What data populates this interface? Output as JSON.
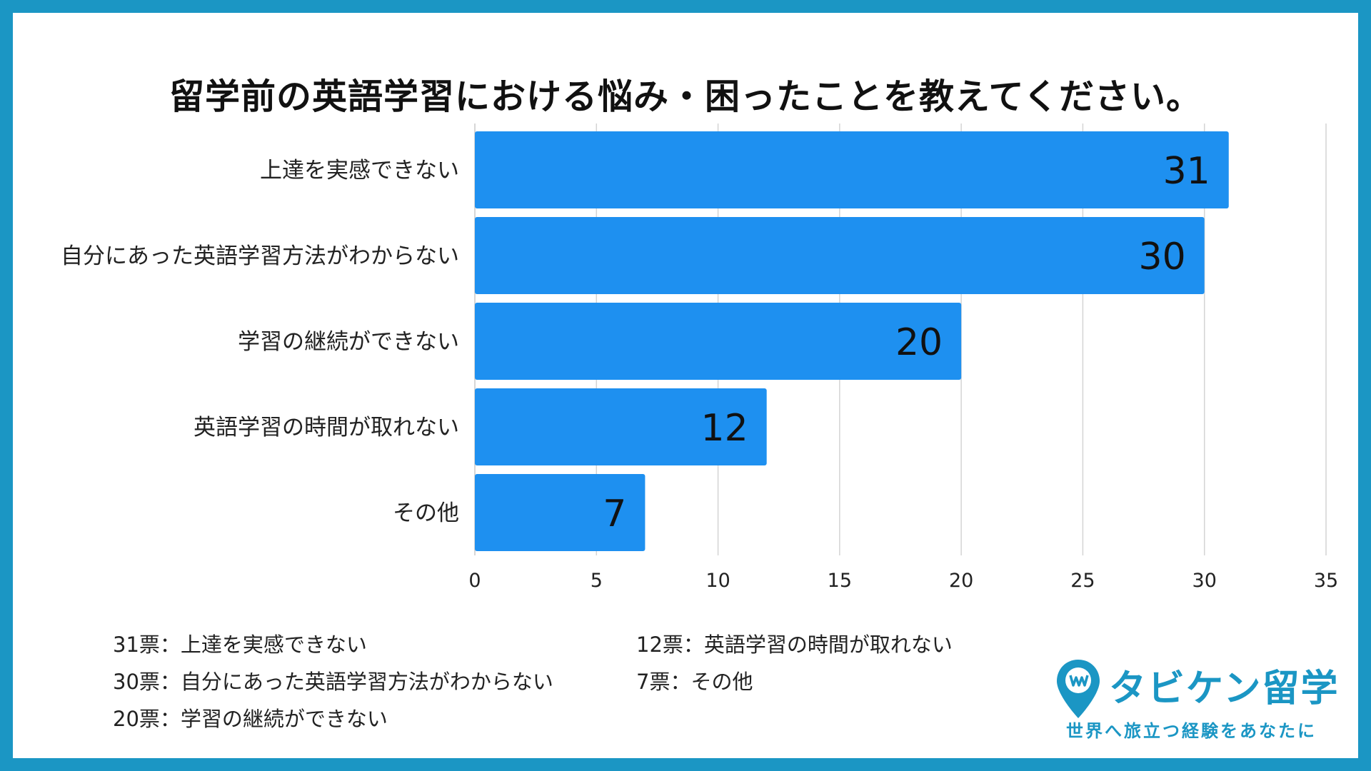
{
  "chart_data": {
    "type": "bar",
    "orientation": "horizontal",
    "title": "留学前の英語学習における悩み・困ったことを教えてください。",
    "categories": [
      "上達を実感できない",
      "自分にあった英語学習方法がわからない",
      "学習の継続ができない",
      "英語学習の時間が取れない",
      "その他"
    ],
    "values": [
      31,
      30,
      20,
      12,
      7
    ],
    "xlim": [
      0,
      35
    ],
    "x_ticks": [
      "0",
      "5",
      "10",
      "15",
      "20",
      "25",
      "30",
      "35"
    ],
    "grid": "vertical",
    "bar_color": "#1e90f0",
    "data_labels": [
      "31",
      "30",
      "20",
      "12",
      "7"
    ]
  },
  "legend": [
    "31票：上達を実感できない",
    "30票：自分にあった英語学習方法がわからない",
    "20票：学習の継続ができない",
    "12票：英語学習の時間が取れない",
    "7票：その他"
  ],
  "logo": {
    "name": "タビケン留学",
    "tagline": "世界へ旅立つ経験をあなたに",
    "icon": "map-pin-icon",
    "color": "#1b96c4"
  },
  "colors": {
    "frame": "#1b96c4",
    "background": "#ffffff"
  }
}
